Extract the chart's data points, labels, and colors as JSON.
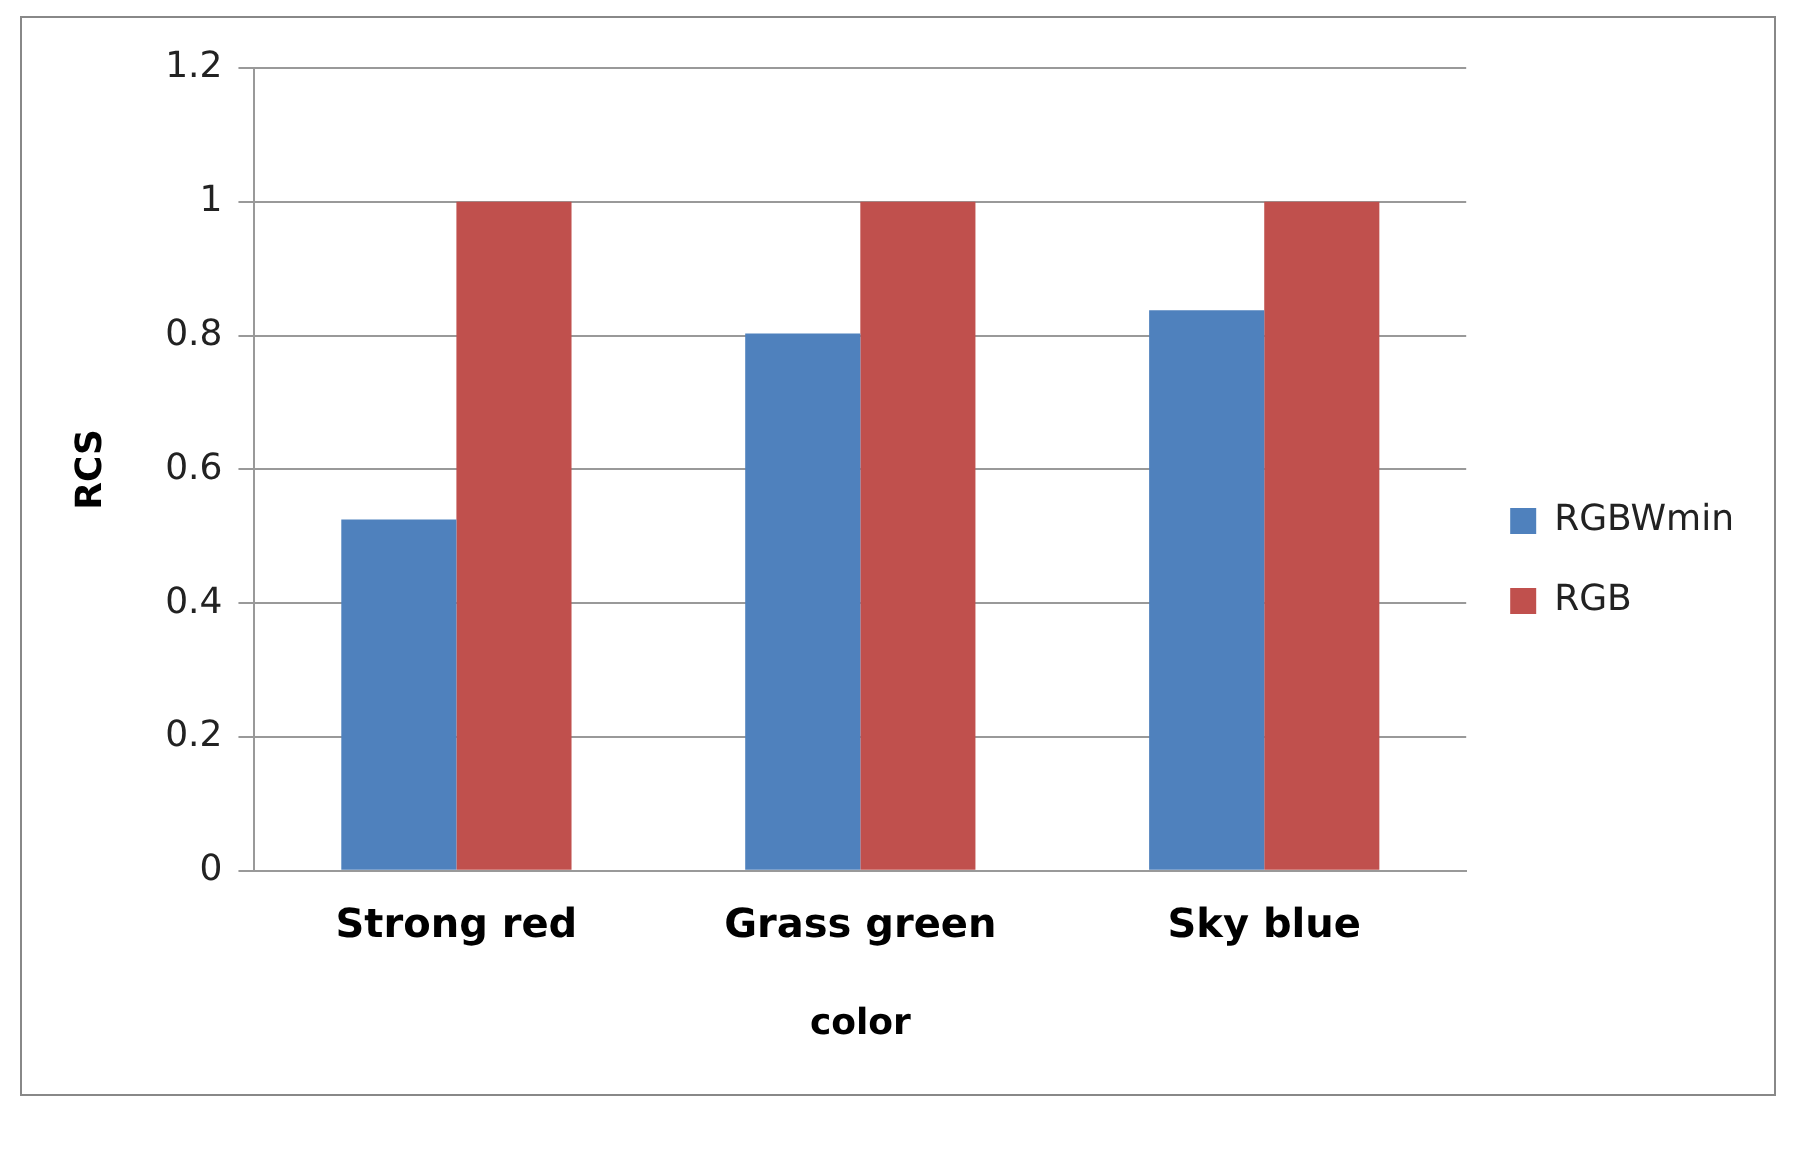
{
  "chart_data": {
    "type": "bar",
    "xlabel": "color",
    "ylabel": "RCS",
    "categories": [
      "Strong red",
      "Grass green",
      "Sky blue"
    ],
    "series": [
      {
        "name": "RGBWmin",
        "color": "#4f81bd",
        "values": [
          0.525,
          0.803,
          0.838
        ]
      },
      {
        "name": "RGB",
        "color": "#c0504d",
        "values": [
          1,
          1,
          1
        ]
      }
    ],
    "ylim": [
      0,
      1.2
    ],
    "yticks": [
      0,
      0.2,
      0.4,
      0.6,
      0.8,
      1,
      1.2
    ],
    "grid": "y",
    "legend": "right"
  }
}
